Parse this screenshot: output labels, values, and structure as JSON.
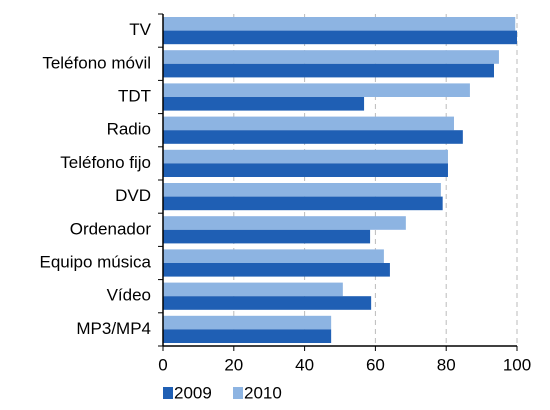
{
  "chart_data": {
    "type": "bar",
    "orientation": "horizontal",
    "categories": [
      "TV",
      "Teléfono móvil",
      "TDT",
      "Radio",
      "Teléfono fijo",
      "DVD",
      "Ordenador",
      "Equipo música",
      "Vídeo",
      "MP3/MP4"
    ],
    "series": [
      {
        "name": "2009",
        "color": "#1f5fb4",
        "values": [
          100,
          93.5,
          56.8,
          84.7,
          80.5,
          79,
          58.5,
          64.1,
          58.8,
          47.5
        ]
      },
      {
        "name": "2010",
        "color": "#8db4e2",
        "values": [
          99.5,
          94.9,
          86.7,
          82.2,
          80.5,
          78.5,
          68.6,
          62.4,
          50.8,
          47.5
        ]
      }
    ],
    "xlim": [
      0,
      100
    ],
    "xticks": [
      0,
      20,
      40,
      60,
      80,
      100
    ],
    "grid": true,
    "legend": "bottom"
  }
}
